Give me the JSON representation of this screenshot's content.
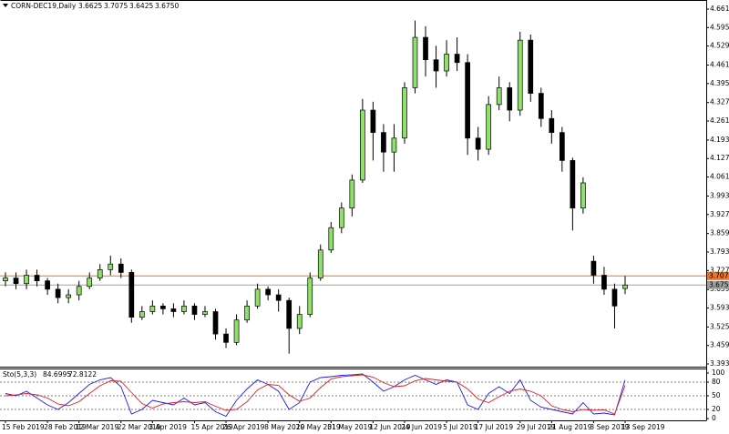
{
  "chart_data": [
    {
      "type": "candlestick",
      "title": "CORN-DEC19,Daily",
      "title_values": [
        "3.6625",
        "3.7075",
        "3.6425",
        "3.6750"
      ],
      "categories": [
        "15 Feb 2019",
        null,
        null,
        null,
        "28 Feb 2019",
        null,
        null,
        "12 Mar 2019",
        null,
        null,
        null,
        "22 Mar 2019",
        null,
        null,
        "3 Apr 2019",
        null,
        null,
        null,
        "15 Apr 2019",
        null,
        null,
        "26 Apr 2019",
        null,
        null,
        null,
        "8 May 2019",
        null,
        null,
        "20 May 2019",
        null,
        null,
        "31 May 2019",
        null,
        null,
        null,
        "12 Jun 2019",
        null,
        null,
        "24 Jun 2019",
        null,
        null,
        null,
        "5 Jul 2019",
        null,
        null,
        "17 Jul 2019",
        null,
        null,
        null,
        "29 Jul 2019",
        null,
        null,
        "21 Aug 2019",
        null,
        null,
        null,
        "3 Sep 2019",
        null,
        null,
        "13 Sep 2019"
      ],
      "open": [
        3.69,
        3.7,
        3.68,
        3.71,
        3.69,
        3.66,
        3.63,
        3.64,
        3.67,
        3.7,
        3.73,
        3.75,
        3.72,
        3.56,
        3.58,
        3.6,
        3.59,
        3.58,
        3.6,
        3.57,
        3.58,
        3.5,
        3.47,
        3.55,
        3.6,
        3.66,
        3.64,
        3.62,
        3.52,
        3.57,
        3.7,
        3.8,
        3.88,
        3.95,
        4.05,
        4.3,
        4.22,
        4.15,
        4.2,
        4.38,
        4.56,
        4.48,
        4.44,
        4.5,
        4.47,
        4.2,
        4.16,
        4.32,
        4.38,
        4.3,
        4.55,
        4.36,
        4.27,
        4.22,
        4.12,
        3.95,
        3.76,
        3.71,
        3.66,
        3.6625
      ],
      "high": [
        3.72,
        3.72,
        3.73,
        3.73,
        3.7,
        3.68,
        3.66,
        3.69,
        3.72,
        3.75,
        3.78,
        3.77,
        3.73,
        3.6,
        3.62,
        3.61,
        3.61,
        3.62,
        3.61,
        3.6,
        3.59,
        3.52,
        3.57,
        3.62,
        3.68,
        3.67,
        3.66,
        3.63,
        3.6,
        3.72,
        3.82,
        3.9,
        3.97,
        4.07,
        4.34,
        4.33,
        4.25,
        4.25,
        4.4,
        4.62,
        4.6,
        4.53,
        4.55,
        4.56,
        4.5,
        4.24,
        4.35,
        4.42,
        4.4,
        4.58,
        4.57,
        4.38,
        4.3,
        4.24,
        4.13,
        4.06,
        3.78,
        3.74,
        3.68,
        3.7075
      ],
      "low": [
        3.67,
        3.66,
        3.66,
        3.67,
        3.64,
        3.61,
        3.61,
        3.62,
        3.66,
        3.69,
        3.71,
        3.7,
        3.54,
        3.55,
        3.57,
        3.57,
        3.56,
        3.57,
        3.55,
        3.56,
        3.48,
        3.45,
        3.46,
        3.54,
        3.59,
        3.62,
        3.58,
        3.43,
        3.5,
        3.56,
        3.69,
        3.79,
        3.86,
        3.92,
        4.04,
        4.12,
        4.08,
        4.08,
        4.18,
        4.36,
        4.42,
        4.38,
        4.42,
        4.44,
        4.14,
        4.12,
        4.14,
        4.3,
        4.26,
        4.28,
        4.33,
        4.24,
        4.18,
        4.08,
        3.87,
        3.93,
        3.68,
        3.64,
        3.52,
        3.6425
      ],
      "close": [
        3.7,
        3.68,
        3.71,
        3.69,
        3.66,
        3.63,
        3.64,
        3.67,
        3.7,
        3.73,
        3.75,
        3.72,
        3.56,
        3.58,
        3.6,
        3.59,
        3.58,
        3.6,
        3.57,
        3.58,
        3.5,
        3.47,
        3.55,
        3.6,
        3.66,
        3.64,
        3.62,
        3.52,
        3.57,
        3.7,
        3.8,
        3.88,
        3.95,
        4.05,
        4.3,
        4.22,
        4.15,
        4.2,
        4.38,
        4.56,
        4.48,
        4.44,
        4.5,
        4.47,
        4.2,
        4.16,
        4.32,
        4.38,
        4.3,
        4.55,
        4.36,
        4.27,
        4.22,
        4.12,
        3.95,
        4.04,
        3.71,
        3.66,
        3.6,
        3.675
      ],
      "up_color": "#8fe06a",
      "down_color": "#000000",
      "ylim": [
        3.393,
        4.661
      ],
      "yticks": [
        {
          "value": 4.661,
          "label": "4.6610"
        },
        {
          "value": 4.595,
          "label": "4.5950"
        },
        {
          "value": 4.529,
          "label": "4.5290"
        },
        {
          "value": 4.461,
          "label": "4.4610"
        },
        {
          "value": 4.395,
          "label": "4.3950"
        },
        {
          "value": 4.327,
          "label": "4.3270"
        },
        {
          "value": 4.261,
          "label": "4.2610"
        },
        {
          "value": 4.193,
          "label": "4.1930"
        },
        {
          "value": 4.127,
          "label": "4.1270"
        },
        {
          "value": 4.061,
          "label": "4.0610"
        },
        {
          "value": 3.993,
          "label": "3.9930"
        },
        {
          "value": 3.927,
          "label": "3.9270"
        },
        {
          "value": 3.859,
          "label": "3.8590"
        },
        {
          "value": 3.793,
          "label": "3.7930"
        },
        {
          "value": 3.727,
          "label": "3.7270"
        },
        {
          "value": 3.659,
          "label": "3.6590"
        },
        {
          "value": 3.593,
          "label": "3.5930"
        },
        {
          "value": 3.525,
          "label": "3.5250"
        },
        {
          "value": 3.459,
          "label": "3.4590"
        },
        {
          "value": 3.393,
          "label": "3.3930"
        }
      ],
      "price_lines": [
        {
          "value": 3.7075,
          "label": "3.7075",
          "color": "#e8762c"
        },
        {
          "value": 3.675,
          "label": "3.6750",
          "color": "#a0a0a0"
        }
      ]
    },
    {
      "type": "line",
      "title": "Sto(5,3,3)",
      "series": [
        {
          "color": "#1e1ee6",
          "values": [
            55,
            50,
            60,
            45,
            30,
            20,
            35,
            55,
            75,
            85,
            90,
            70,
            10,
            20,
            40,
            35,
            30,
            45,
            30,
            35,
            15,
            5,
            40,
            65,
            85,
            75,
            60,
            20,
            35,
            80,
            90,
            92,
            95,
            96,
            98,
            80,
            60,
            70,
            85,
            95,
            85,
            75,
            85,
            80,
            30,
            20,
            55,
            70,
            55,
            85,
            40,
            25,
            20,
            15,
            10,
            35,
            10,
            12,
            8,
            84.6995
          ]
        },
        {
          "color": "#e02020",
          "values": [
            50,
            52,
            55,
            52,
            45,
            32,
            28,
            37,
            55,
            72,
            83,
            82,
            57,
            33,
            23,
            32,
            35,
            37,
            35,
            37,
            27,
            18,
            20,
            37,
            63,
            75,
            73,
            52,
            38,
            45,
            68,
            87,
            92,
            94,
            96,
            91,
            79,
            70,
            72,
            83,
            88,
            85,
            82,
            80,
            65,
            43,
            35,
            48,
            60,
            65,
            60,
            50,
            28,
            20,
            15,
            20,
            18,
            19,
            10,
            72.8122
          ]
        }
      ],
      "ylim": [
        0,
        100
      ],
      "yticks": [
        0,
        20,
        50,
        80,
        100
      ]
    }
  ]
}
